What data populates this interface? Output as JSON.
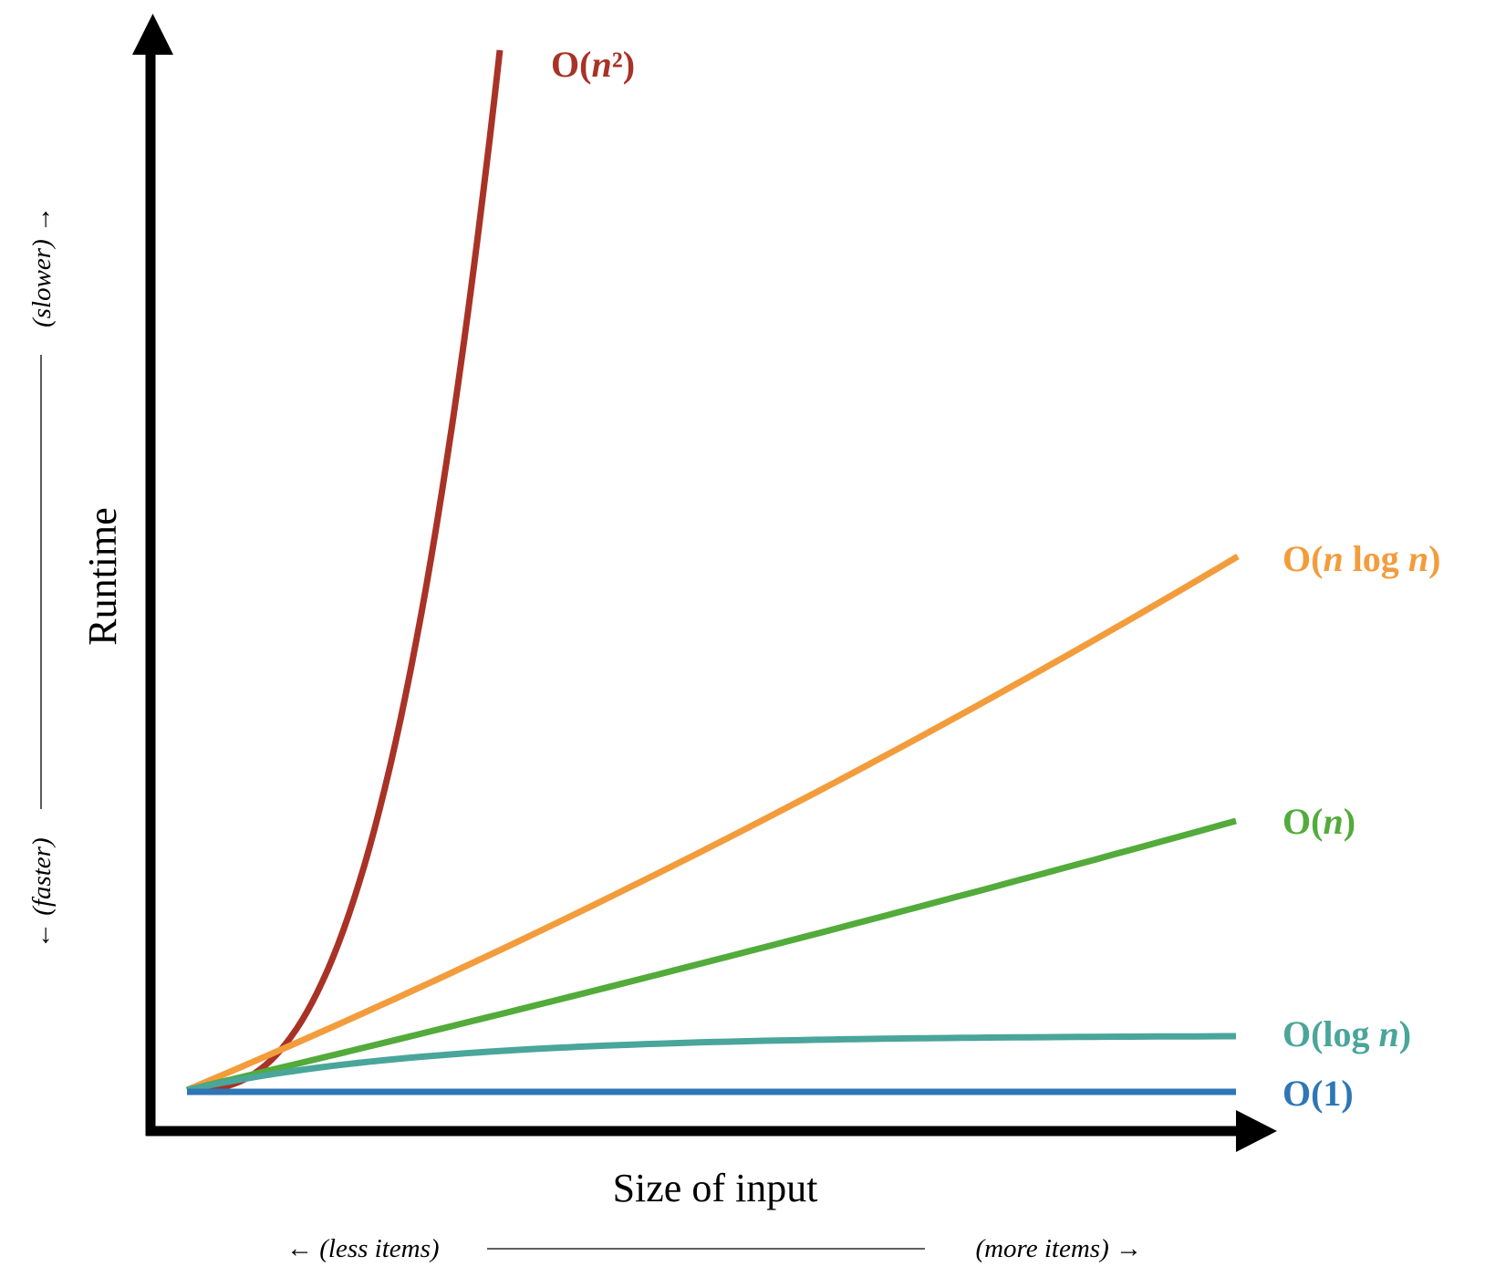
{
  "chart_data": {
    "type": "line",
    "title": "",
    "xlabel": "Size of input",
    "ylabel": "Runtime",
    "x_hint_left": "← (less items)",
    "x_hint_right": "(more items) →",
    "y_hint_low": "← (faster)",
    "y_hint_high": "(slower) →",
    "grid": false,
    "legend": "labels at line ends (right)",
    "colors": {
      "O(n^2)": "#a93226",
      "O(n log n)": "#f39c3c",
      "O(n)": "#52ab3a",
      "O(log n)": "#4aa59a",
      "O(1)": "#2e76b6"
    },
    "series": [
      {
        "name": "O(n²)",
        "label_prefix": "O(",
        "label_italic": "n",
        "label_mid": "²",
        "label_italic2": "",
        "label_suffix": ")",
        "color": "#a93226",
        "function": "n^2"
      },
      {
        "name": "O(n log n)",
        "label_prefix": "O(",
        "label_italic": "n",
        "label_mid": " log ",
        "label_italic2": "n",
        "label_suffix": ")",
        "color": "#f39c3c",
        "function": "n log n"
      },
      {
        "name": "O(n)",
        "label_prefix": "O(",
        "label_italic": "n",
        "label_mid": "",
        "label_italic2": "",
        "label_suffix": ")",
        "color": "#52ab3a",
        "function": "n"
      },
      {
        "name": "O(log n)",
        "label_prefix": "O(log ",
        "label_italic": "n",
        "label_mid": "",
        "label_italic2": "",
        "label_suffix": ")",
        "color": "#4aa59a",
        "function": "log n"
      },
      {
        "name": "O(1)",
        "label_prefix": "O(1)",
        "label_italic": "",
        "label_mid": "",
        "label_italic2": "",
        "label_suffix": "",
        "color": "#2e76b6",
        "function": "1"
      }
    ]
  }
}
